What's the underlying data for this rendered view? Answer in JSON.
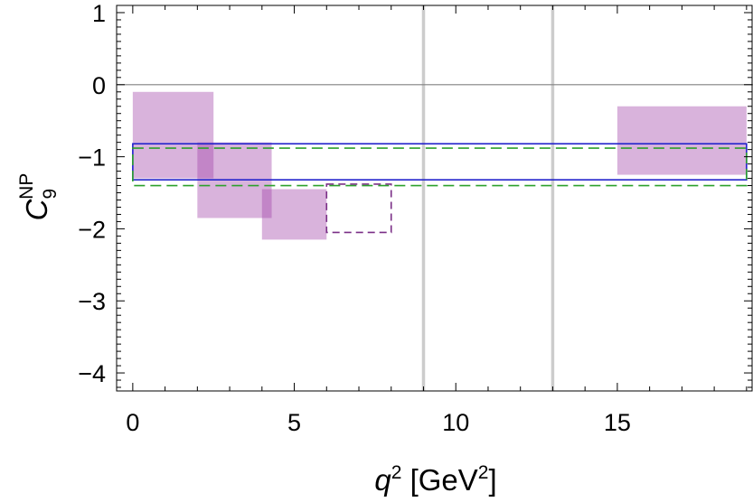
{
  "chart_data": {
    "type": "box-plot",
    "xlabel": "q² [GeV²]",
    "ylabel": "C₉ᴺᴾ",
    "xlabel_parts": {
      "base": "q",
      "sup": "2",
      "unit_open": " [GeV",
      "unit_sup": "2",
      "unit_close": "]"
    },
    "ylabel_parts": {
      "base": "C",
      "sub": "9",
      "sup": "NP"
    },
    "xlim": [
      -0.5,
      19.2
    ],
    "ylim": [
      -4.25,
      1.1
    ],
    "x_ticks": [
      0,
      5,
      10,
      15
    ],
    "x_tick_labels": [
      "0",
      "5",
      "10",
      "15"
    ],
    "y_ticks": [
      1,
      0,
      -1,
      -2,
      -3,
      -4
    ],
    "y_tick_labels": [
      "1",
      "0",
      "−1",
      "−2",
      "−3",
      "−4"
    ],
    "reference_line_y": 0,
    "vertical_lines_x": [
      9,
      13
    ],
    "filled_bins": [
      {
        "x": [
          0,
          2.5
        ],
        "y": [
          -1.3,
          -0.1
        ]
      },
      {
        "x": [
          2,
          4.3
        ],
        "y": [
          -1.85,
          -0.8
        ]
      },
      {
        "x": [
          4,
          6
        ],
        "y": [
          -2.15,
          -1.45
        ]
      },
      {
        "x": [
          15,
          19
        ],
        "y": [
          -1.25,
          -0.3
        ]
      }
    ],
    "dashed_bin": {
      "x": [
        6,
        8
      ],
      "y": [
        -2.05,
        -1.38
      ]
    },
    "global_fit_solid": {
      "x": [
        0,
        19
      ],
      "y": [
        -1.32,
        -0.82
      ]
    },
    "global_fit_dashed": {
      "x": [
        0,
        19
      ],
      "y": [
        -1.4,
        -0.88
      ]
    },
    "colors": {
      "bin_fill": "#a040a8",
      "dashed_bin": "#7a2f86",
      "solid_fit": "#2222cc",
      "dashed_fit": "#2ca02c",
      "vertical_line": "#cccccc",
      "zero_line": "#808080"
    }
  }
}
